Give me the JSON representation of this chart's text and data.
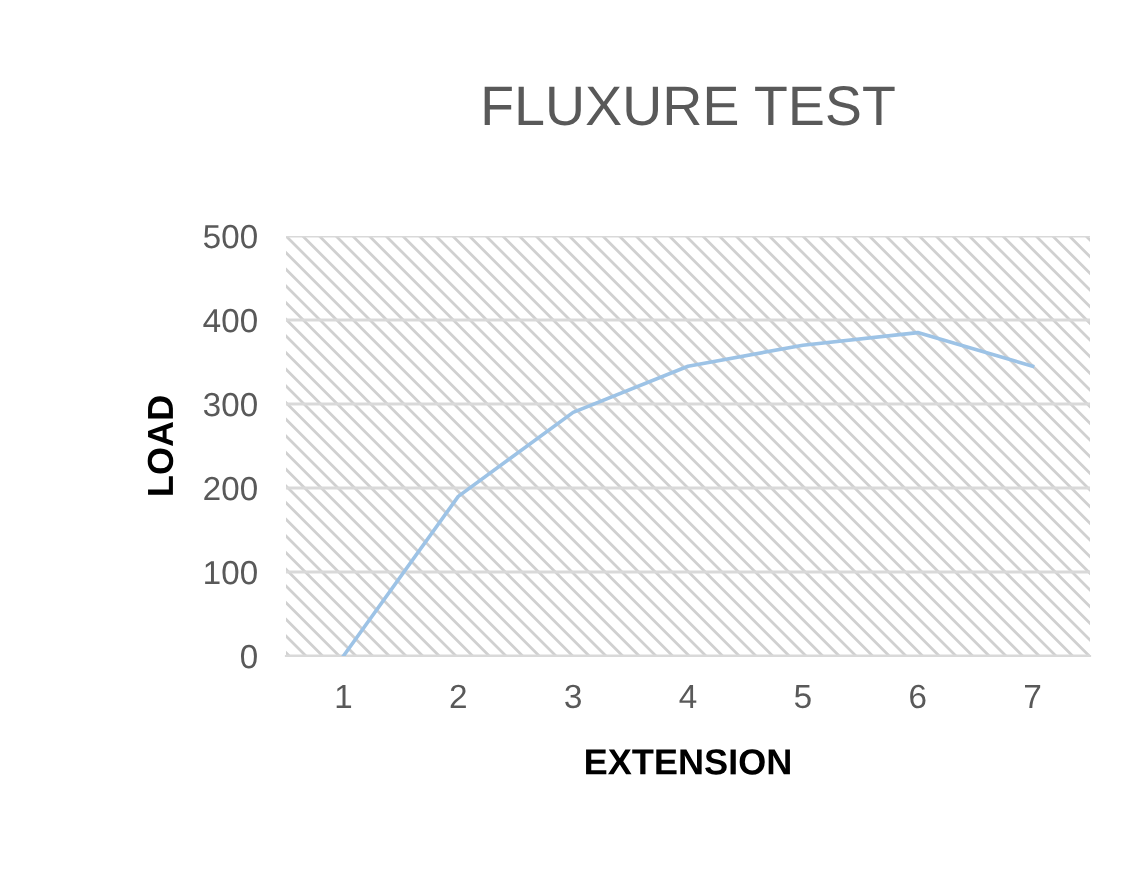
{
  "chart_data": {
    "type": "line",
    "title": "FLUXURE TEST",
    "xlabel": "EXTENSION",
    "ylabel": "LOAD",
    "categories": [
      "1",
      "2",
      "3",
      "4",
      "5",
      "6",
      "7"
    ],
    "series": [
      {
        "color": "#9dc3e6",
        "values": [
          0,
          190,
          290,
          345,
          370,
          385,
          345
        ]
      }
    ],
    "ylim": [
      0,
      500
    ],
    "yticks": [
      0,
      100,
      200,
      300,
      400,
      500
    ],
    "grid": "y",
    "legend": false
  }
}
